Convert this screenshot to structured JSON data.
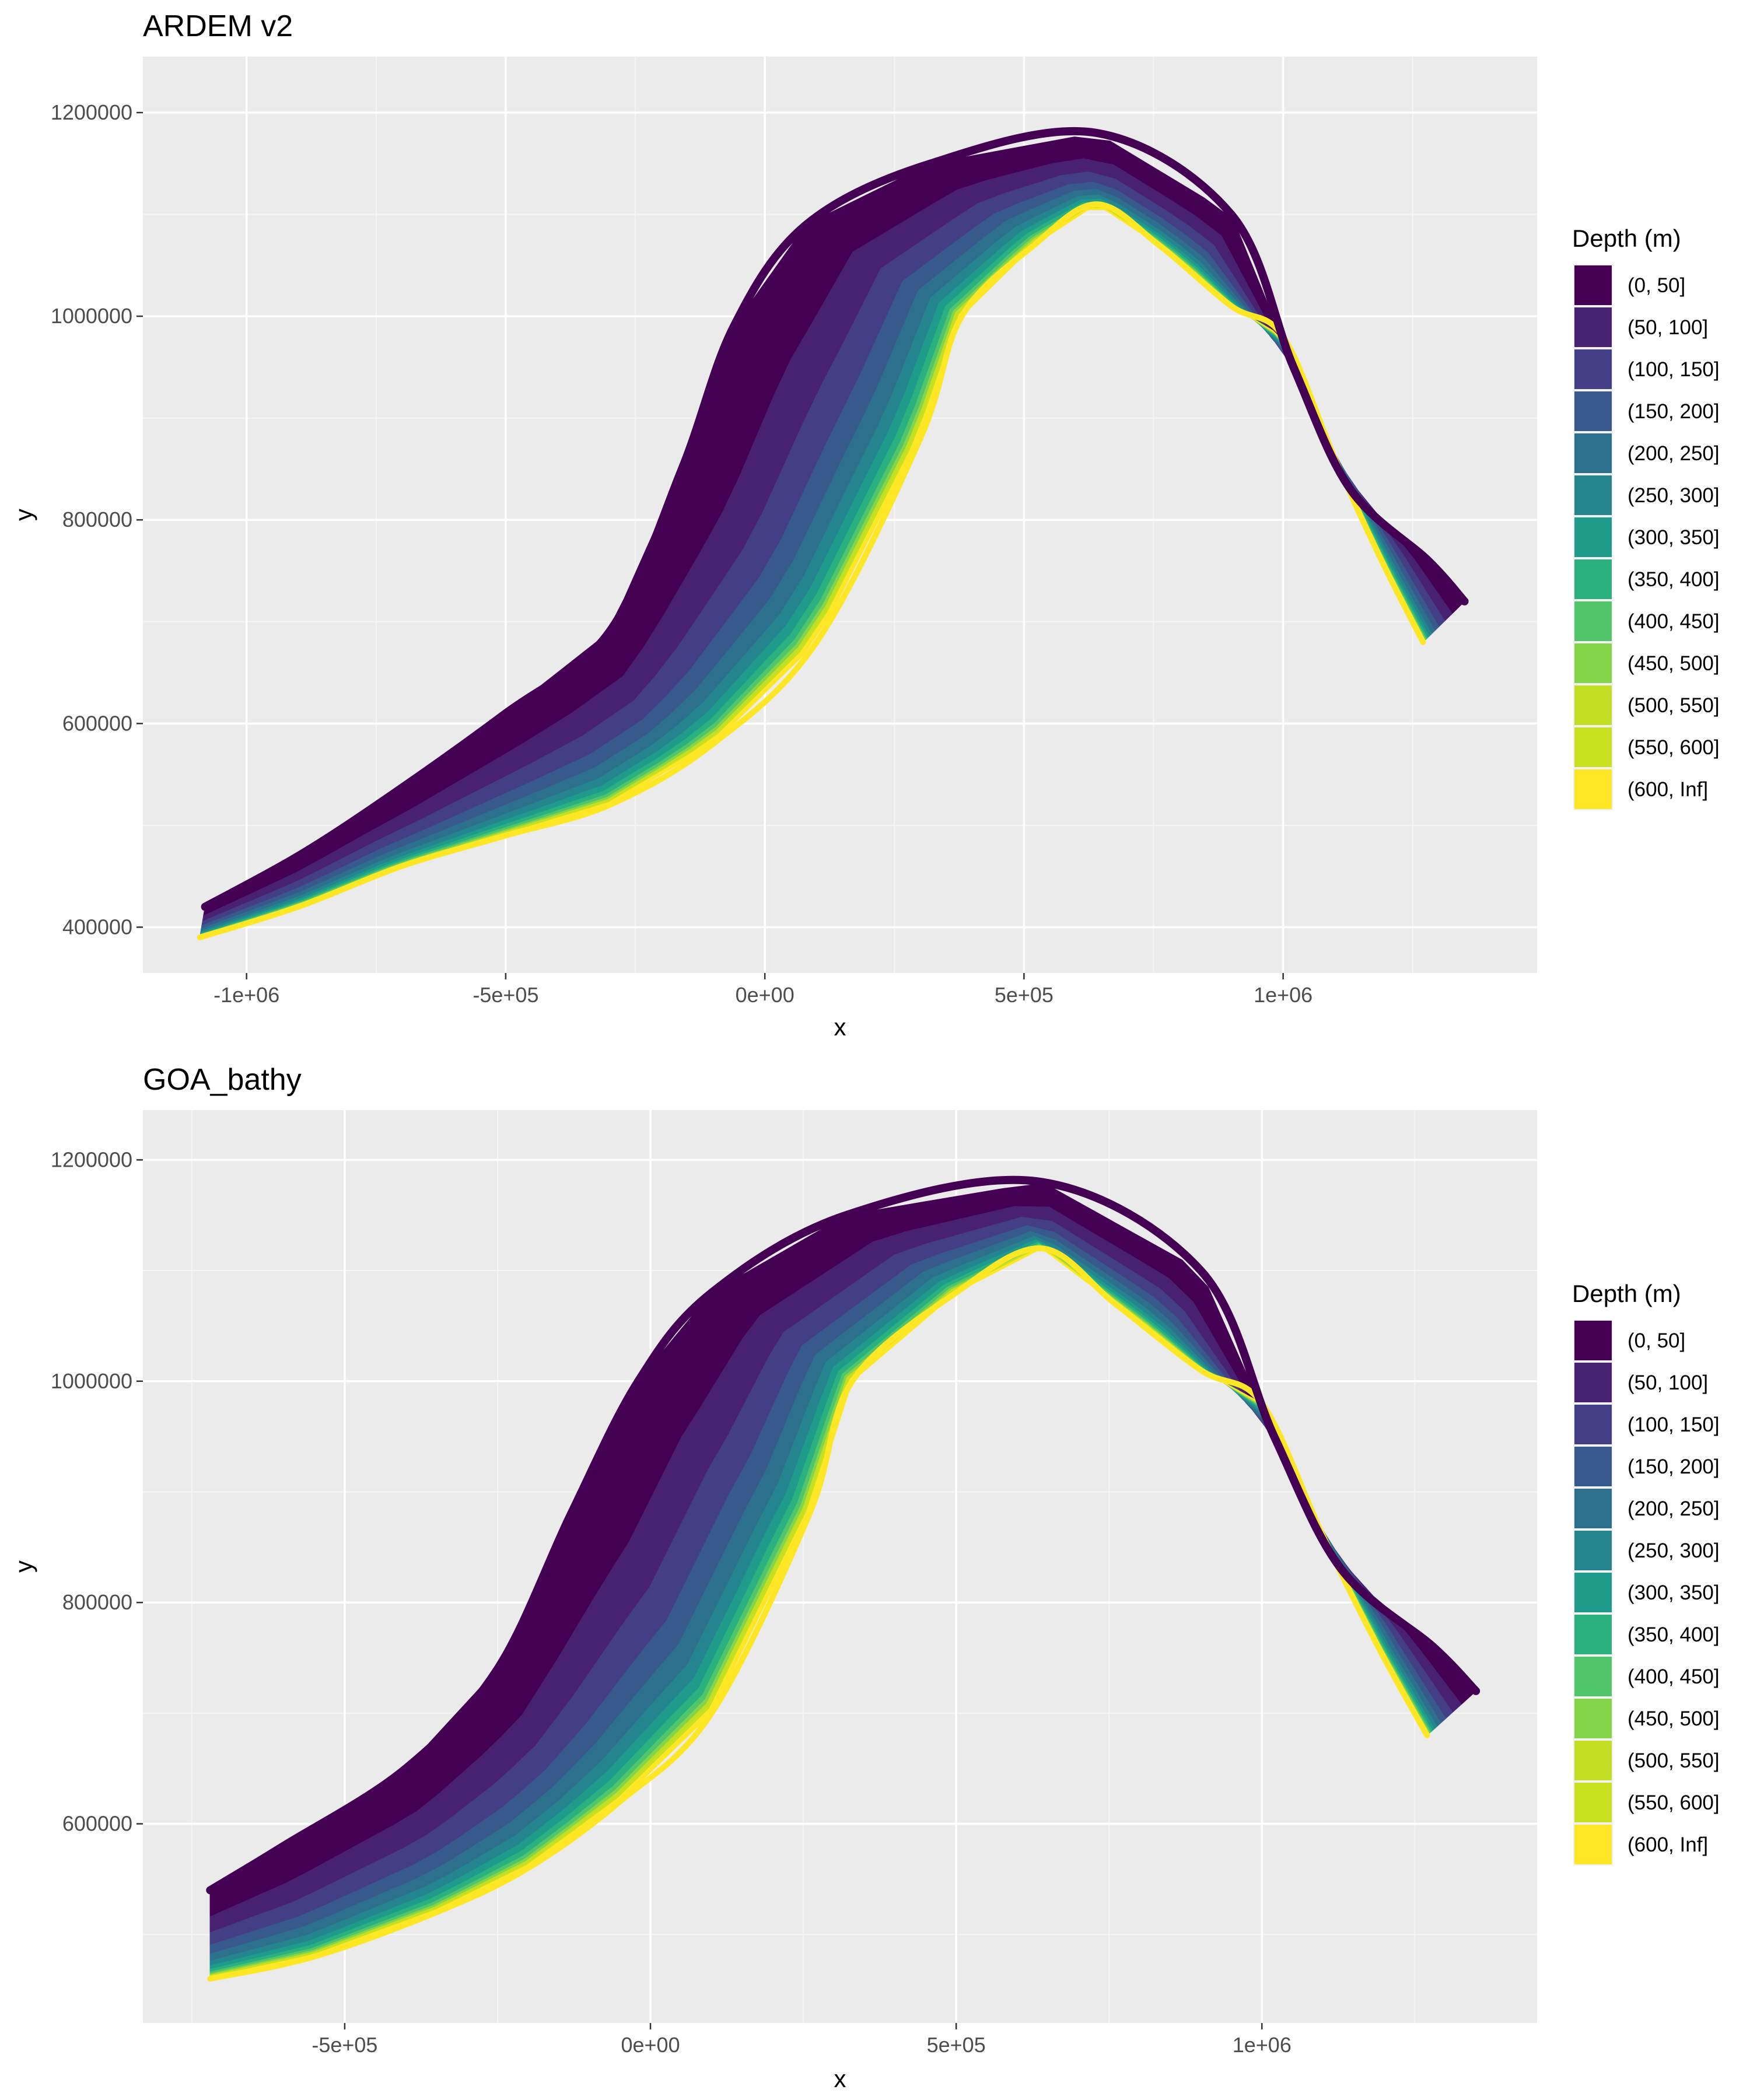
{
  "chart_data": [
    {
      "type": "heatmap",
      "title": "ARDEM v2",
      "xlabel": "x",
      "ylabel": "y",
      "xlim": [
        -1200000,
        1490000
      ],
      "ylim": [
        355000,
        1255000
      ],
      "x_ticks": [
        -1000000,
        -500000,
        0,
        500000,
        1000000
      ],
      "x_tick_labels": [
        "-1e+06",
        "-5e+05",
        "0e+00",
        "5e+05",
        "1e+06"
      ],
      "y_ticks": [
        400000,
        600000,
        800000,
        1000000,
        1200000
      ],
      "y_tick_labels": [
        "400000",
        "600000",
        "800000",
        "1000000",
        "1200000"
      ],
      "grid": true,
      "legend_position": "right",
      "legend_title": "Depth (m)",
      "bins": [
        "(0, 50]",
        "(50, 100]",
        "(100, 150]",
        "(150, 200]",
        "(200, 250]",
        "(250, 300]",
        "(300, 350]",
        "(350, 400]",
        "(400, 450]",
        "(450, 500]",
        "(500, 550]",
        "(550, 600]",
        "(600, Inf]"
      ],
      "colors": [
        "#440154",
        "#482173",
        "#433E85",
        "#38598C",
        "#2D708E",
        "#25858E",
        "#1E9B8A",
        "#2BB07F",
        "#51C56A",
        "#85D54A",
        "#C2DF23",
        "#C8E020",
        "#FDE725"
      ],
      "shelf_coast": [
        [
          -1080000,
          420000
        ],
        [
          -900000,
          470000
        ],
        [
          -720000,
          530000
        ],
        [
          -500000,
          610000
        ],
        [
          -300000,
          690000
        ],
        [
          -160000,
          850000
        ],
        [
          -60000,
          990000
        ],
        [
          80000,
          1090000
        ],
        [
          320000,
          1150000
        ],
        [
          640000,
          1180000
        ],
        [
          900000,
          1100000
        ],
        [
          1020000,
          950000
        ],
        [
          1130000,
          830000
        ],
        [
          1280000,
          760000
        ],
        [
          1350000,
          720000
        ]
      ],
      "shelf_edge": [
        [
          -1090000,
          390000
        ],
        [
          -900000,
          420000
        ],
        [
          -700000,
          460000
        ],
        [
          -500000,
          490000
        ],
        [
          -300000,
          520000
        ],
        [
          -100000,
          580000
        ],
        [
          100000,
          680000
        ],
        [
          300000,
          880000
        ],
        [
          380000,
          1000000
        ],
        [
          520000,
          1070000
        ],
        [
          640000,
          1110000
        ],
        [
          760000,
          1070000
        ],
        [
          900000,
          1010000
        ],
        [
          1000000,
          980000
        ],
        [
          1100000,
          860000
        ],
        [
          1190000,
          760000
        ],
        [
          1270000,
          680000
        ]
      ]
    },
    {
      "type": "heatmap",
      "title": "GOA_bathy",
      "xlabel": "x",
      "ylabel": "y",
      "xlim": [
        -830000,
        1450000
      ],
      "ylim": [
        420000,
        1245000
      ],
      "x_ticks": [
        -500000,
        0,
        500000,
        1000000
      ],
      "x_tick_labels": [
        "-5e+05",
        "0e+00",
        "5e+05",
        "1e+06"
      ],
      "y_ticks": [
        600000,
        800000,
        1000000,
        1200000
      ],
      "y_tick_labels": [
        "600000",
        "800000",
        "1000000",
        "1200000"
      ],
      "grid": true,
      "legend_position": "right",
      "legend_title": "Depth (m)",
      "bins": [
        "(0, 50]",
        "(50, 100]",
        "(100, 150]",
        "(150, 200]",
        "(200, 250]",
        "(250, 300]",
        "(300, 350]",
        "(350, 400]",
        "(400, 450]",
        "(450, 500]",
        "(500, 550]",
        "(550, 600]",
        "(600, Inf]"
      ],
      "colors": [
        "#440154",
        "#482173",
        "#433E85",
        "#38598C",
        "#2D708E",
        "#25858E",
        "#1E9B8A",
        "#2BB07F",
        "#51C56A",
        "#85D54A",
        "#C2DF23",
        "#C8E020",
        "#FDE725"
      ],
      "shelf_coast": [
        [
          -720000,
          540000
        ],
        [
          -600000,
          580000
        ],
        [
          -400000,
          650000
        ],
        [
          -250000,
          740000
        ],
        [
          -130000,
          880000
        ],
        [
          -20000,
          1000000
        ],
        [
          100000,
          1080000
        ],
        [
          320000,
          1150000
        ],
        [
          640000,
          1180000
        ],
        [
          900000,
          1100000
        ],
        [
          1020000,
          950000
        ],
        [
          1130000,
          830000
        ],
        [
          1280000,
          760000
        ],
        [
          1350000,
          720000
        ]
      ],
      "shelf_edge": [
        [
          -720000,
          460000
        ],
        [
          -550000,
          480000
        ],
        [
          -350000,
          520000
        ],
        [
          -200000,
          560000
        ],
        [
          -50000,
          620000
        ],
        [
          100000,
          700000
        ],
        [
          260000,
          880000
        ],
        [
          330000,
          1000000
        ],
        [
          500000,
          1080000
        ],
        [
          640000,
          1120000
        ],
        [
          760000,
          1070000
        ],
        [
          900000,
          1010000
        ],
        [
          1000000,
          980000
        ],
        [
          1100000,
          860000
        ],
        [
          1190000,
          760000
        ],
        [
          1270000,
          680000
        ]
      ]
    }
  ]
}
